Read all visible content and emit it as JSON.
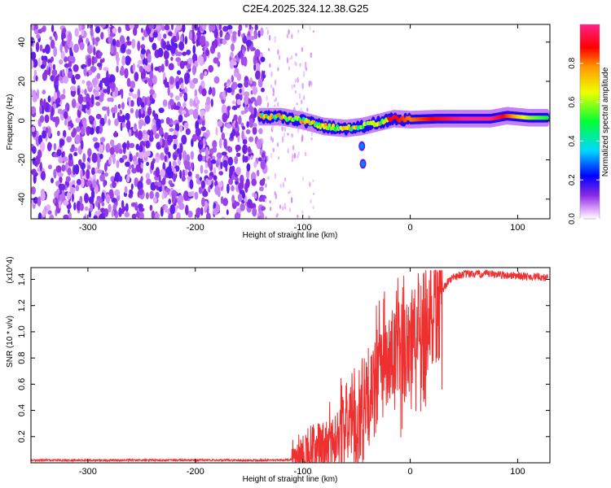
{
  "title": "C2E4.2025.324.12.38.G25",
  "chart_data": [
    {
      "type": "heatmap",
      "name": "spectrogram",
      "xlabel": "Height of straight line (km)",
      "ylabel": "Frequency (Hz)",
      "xlim": [
        -353,
        130
      ],
      "ylim": [
        -50,
        49
      ],
      "xticks": [
        -300,
        -200,
        -100,
        0,
        100
      ],
      "yticks": [
        -40,
        -20,
        0,
        20,
        40
      ],
      "colorbar": {
        "label": "Normalized spectral amplitude",
        "range": [
          0,
          1
        ],
        "ticks": [
          "0.0",
          "0.2",
          "0.4",
          "0.6",
          "0.8"
        ],
        "colormap": "rainbow (magenta-blue-cyan-green-yellow-orange-red-pink)"
      },
      "noise_region_x": [
        -353,
        -135
      ],
      "signal_track": [
        {
          "x": -140,
          "f": 2,
          "amp": 0.55
        },
        {
          "x": -120,
          "f": 2,
          "amp": 0.5
        },
        {
          "x": -100,
          "f": 0,
          "amp": 0.55
        },
        {
          "x": -80,
          "f": -3,
          "amp": 0.45
        },
        {
          "x": -60,
          "f": -4,
          "amp": 0.5
        },
        {
          "x": -45,
          "f": -3,
          "amp": 0.7
        },
        {
          "x": -30,
          "f": -1,
          "amp": 0.85
        },
        {
          "x": -15,
          "f": 1,
          "amp": 0.9
        },
        {
          "x": 0,
          "f": 0.5,
          "amp": 0.8
        },
        {
          "x": 25,
          "f": 1,
          "amp": 0.9
        },
        {
          "x": 50,
          "f": 1,
          "amp": 1.0
        },
        {
          "x": 75,
          "f": 1,
          "amp": 1.0
        },
        {
          "x": 90,
          "f": 2.5,
          "amp": 0.85
        },
        {
          "x": 110,
          "f": 1.5,
          "amp": 0.6
        },
        {
          "x": 128,
          "f": 1.5,
          "amp": 0.5
        }
      ],
      "secondary_features": [
        {
          "x": -45,
          "f": -13
        },
        {
          "x": -44,
          "f": -22
        }
      ]
    },
    {
      "type": "line",
      "name": "snr",
      "xlabel": "Height of straight line (km)",
      "ylabel": "SNR (10 * v/v)",
      "y_multiplier": "(x10^4)",
      "xlim": [
        -353,
        130
      ],
      "ylim": [
        0,
        1.49
      ],
      "xticks": [
        -300,
        -200,
        -100,
        0,
        100
      ],
      "yticks": [
        "0.2",
        "0.4",
        "0.6",
        "0.8",
        "1.0",
        "1.2",
        "1.4"
      ],
      "color": "#ee3030",
      "series": [
        {
          "name": "SNR",
          "x": [
            -353,
            -300,
            -250,
            -200,
            -150,
            -120,
            -100,
            -90,
            -80,
            -70,
            -60,
            -55,
            -50,
            -45,
            -40,
            -35,
            -30,
            -25,
            -20,
            -15,
            -10,
            -5,
            0,
            5,
            10,
            15,
            20,
            25,
            30,
            35,
            40,
            50,
            60,
            70,
            80,
            90,
            100,
            110,
            120,
            128
          ],
          "y": [
            0.02,
            0.02,
            0.02,
            0.02,
            0.02,
            0.02,
            0.03,
            0.06,
            0.12,
            0.2,
            0.3,
            0.35,
            0.25,
            0.45,
            0.35,
            0.55,
            0.75,
            0.8,
            0.7,
            0.85,
            0.75,
            0.9,
            1.0,
            0.95,
            1.05,
            1.1,
            1.15,
            1.25,
            1.32,
            1.38,
            1.42,
            1.44,
            1.44,
            1.44,
            1.44,
            1.43,
            1.43,
            1.42,
            1.42,
            1.41
          ]
        }
      ]
    }
  ]
}
